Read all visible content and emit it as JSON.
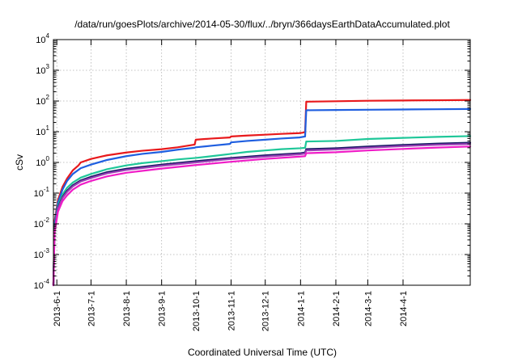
{
  "chart_data": {
    "type": "line",
    "title": "/data/run/goesPlots/archive/2014-05-30/flux/../bryn/366daysEarthDataAccumulated.plot",
    "xlabel": "Coordinated Universal Time (UTC)",
    "ylabel": "cSv",
    "yscale": "log",
    "ylim": [
      0.0001,
      10000
    ],
    "xlim": [
      "2013-05-29",
      "2014-05-30"
    ],
    "grid": true,
    "x_ticks": [
      "2013-6-1",
      "2013-7-1",
      "2013-8-1",
      "2013-9-1",
      "2013-10-1",
      "2013-11-1",
      "2013-12-1",
      "2014-1-1",
      "2014-2-1",
      "2014-3-1",
      "2014-4-1"
    ],
    "y_ticks": [
      {
        "value": 0.0001,
        "base": "10",
        "exp": "-4"
      },
      {
        "value": 0.001,
        "base": "10",
        "exp": "-3"
      },
      {
        "value": 0.01,
        "base": "10",
        "exp": "-2"
      },
      {
        "value": 0.1,
        "base": "10",
        "exp": "-1"
      },
      {
        "value": 1,
        "base": "10",
        "exp": "0"
      },
      {
        "value": 10,
        "base": "10",
        "exp": "1"
      },
      {
        "value": 100,
        "base": "10",
        "exp": "2"
      },
      {
        "value": 1000,
        "base": "10",
        "exp": "3"
      },
      {
        "value": 10000,
        "base": "10",
        "exp": "4"
      }
    ],
    "series": [
      {
        "color": "#e8191c",
        "points": [
          [
            "2013-05-29",
            0.0001
          ],
          [
            "2013-05-30",
            0.012
          ],
          [
            "2013-06-02",
            0.06
          ],
          [
            "2013-06-06",
            0.16
          ],
          [
            "2013-06-10",
            0.3
          ],
          [
            "2013-06-15",
            0.55
          ],
          [
            "2013-06-20",
            0.8
          ],
          [
            "2013-06-22",
            1.0
          ],
          [
            "2013-07-01",
            1.3
          ],
          [
            "2013-07-15",
            1.7
          ],
          [
            "2013-08-01",
            2.1
          ],
          [
            "2013-08-15",
            2.4
          ],
          [
            "2013-09-01",
            2.7
          ],
          [
            "2013-09-15",
            3.1
          ],
          [
            "2013-09-30",
            3.8
          ],
          [
            "2013-10-01",
            5.5
          ],
          [
            "2013-10-15",
            6.0
          ],
          [
            "2013-10-31",
            6.5
          ],
          [
            "2013-11-01",
            7.0
          ],
          [
            "2013-11-15",
            7.5
          ],
          [
            "2013-12-01",
            8.0
          ],
          [
            "2013-12-15",
            8.5
          ],
          [
            "2013-12-31",
            9.0
          ],
          [
            "2014-01-03",
            9.3
          ],
          [
            "2014-01-05",
            9.8
          ],
          [
            "2014-01-06",
            95
          ],
          [
            "2014-02-01",
            98
          ],
          [
            "2014-03-01",
            102
          ],
          [
            "2014-04-01",
            104
          ],
          [
            "2014-05-01",
            106
          ],
          [
            "2014-05-30",
            108
          ]
        ]
      },
      {
        "color": "#1f5fe0",
        "points": [
          [
            "2013-05-29",
            0.0001
          ],
          [
            "2013-05-30",
            0.01
          ],
          [
            "2013-06-02",
            0.05
          ],
          [
            "2013-06-06",
            0.13
          ],
          [
            "2013-06-10",
            0.25
          ],
          [
            "2013-06-15",
            0.42
          ],
          [
            "2013-06-22",
            0.65
          ],
          [
            "2013-07-01",
            0.85
          ],
          [
            "2013-07-15",
            1.2
          ],
          [
            "2013-08-01",
            1.6
          ],
          [
            "2013-08-15",
            1.9
          ],
          [
            "2013-09-01",
            2.2
          ],
          [
            "2013-09-15",
            2.6
          ],
          [
            "2013-09-30",
            3.0
          ],
          [
            "2013-10-01",
            3.1
          ],
          [
            "2013-10-15",
            3.5
          ],
          [
            "2013-10-31",
            4.0
          ],
          [
            "2013-11-01",
            4.5
          ],
          [
            "2013-11-15",
            5.0
          ],
          [
            "2013-12-01",
            5.5
          ],
          [
            "2013-12-15",
            6.0
          ],
          [
            "2013-12-31",
            6.5
          ],
          [
            "2014-01-05",
            7.0
          ],
          [
            "2014-01-06",
            50
          ],
          [
            "2014-02-01",
            51
          ],
          [
            "2014-03-01",
            52
          ],
          [
            "2014-04-01",
            53
          ],
          [
            "2014-05-01",
            54
          ],
          [
            "2014-05-30",
            55
          ]
        ]
      },
      {
        "color": "#1fc799",
        "points": [
          [
            "2013-05-29",
            0.0001
          ],
          [
            "2013-05-30",
            0.008
          ],
          [
            "2013-06-02",
            0.04
          ],
          [
            "2013-06-06",
            0.09
          ],
          [
            "2013-06-10",
            0.15
          ],
          [
            "2013-06-15",
            0.22
          ],
          [
            "2013-06-22",
            0.32
          ],
          [
            "2013-07-01",
            0.42
          ],
          [
            "2013-07-15",
            0.6
          ],
          [
            "2013-08-01",
            0.8
          ],
          [
            "2013-08-15",
            0.95
          ],
          [
            "2013-09-01",
            1.1
          ],
          [
            "2013-09-15",
            1.25
          ],
          [
            "2013-10-01",
            1.4
          ],
          [
            "2013-10-15",
            1.6
          ],
          [
            "2013-11-01",
            1.9
          ],
          [
            "2013-11-15",
            2.2
          ],
          [
            "2013-12-01",
            2.45
          ],
          [
            "2013-12-15",
            2.7
          ],
          [
            "2014-01-01",
            2.9
          ],
          [
            "2014-01-05",
            3.0
          ],
          [
            "2014-01-06",
            4.8
          ],
          [
            "2014-02-01",
            5.0
          ],
          [
            "2014-03-01",
            5.8
          ],
          [
            "2014-04-01",
            6.3
          ],
          [
            "2014-05-01",
            6.8
          ],
          [
            "2014-05-30",
            7.2
          ]
        ]
      },
      {
        "color": "#1a1a66",
        "points": [
          [
            "2013-05-29",
            0.0001
          ],
          [
            "2013-05-30",
            0.007
          ],
          [
            "2013-06-02",
            0.035
          ],
          [
            "2013-06-06",
            0.075
          ],
          [
            "2013-06-10",
            0.12
          ],
          [
            "2013-06-15",
            0.18
          ],
          [
            "2013-06-22",
            0.26
          ],
          [
            "2013-07-01",
            0.34
          ],
          [
            "2013-07-15",
            0.48
          ],
          [
            "2013-08-01",
            0.62
          ],
          [
            "2013-09-01",
            0.85
          ],
          [
            "2013-10-01",
            1.1
          ],
          [
            "2013-11-01",
            1.4
          ],
          [
            "2013-12-01",
            1.7
          ],
          [
            "2014-01-01",
            2.0
          ],
          [
            "2014-01-05",
            2.1
          ],
          [
            "2014-01-06",
            2.7
          ],
          [
            "2014-02-01",
            2.9
          ],
          [
            "2014-03-01",
            3.3
          ],
          [
            "2014-04-01",
            3.7
          ],
          [
            "2014-05-01",
            4.1
          ],
          [
            "2014-05-30",
            4.4
          ]
        ]
      },
      {
        "color": "#9a3fb5",
        "points": [
          [
            "2013-05-29",
            0.0001
          ],
          [
            "2013-05-30",
            0.0065
          ],
          [
            "2013-06-02",
            0.032
          ],
          [
            "2013-06-06",
            0.07
          ],
          [
            "2013-06-10",
            0.11
          ],
          [
            "2013-06-15",
            0.165
          ],
          [
            "2013-06-22",
            0.24
          ],
          [
            "2013-07-01",
            0.31
          ],
          [
            "2013-07-15",
            0.44
          ],
          [
            "2013-08-01",
            0.57
          ],
          [
            "2013-09-01",
            0.78
          ],
          [
            "2013-10-01",
            1.0
          ],
          [
            "2013-11-01",
            1.3
          ],
          [
            "2013-12-01",
            1.55
          ],
          [
            "2014-01-01",
            1.85
          ],
          [
            "2014-01-05",
            1.95
          ],
          [
            "2014-01-06",
            2.45
          ],
          [
            "2014-02-01",
            2.65
          ],
          [
            "2014-03-01",
            3.0
          ],
          [
            "2014-04-01",
            3.4
          ],
          [
            "2014-05-01",
            3.75
          ],
          [
            "2014-05-30",
            4.0
          ]
        ]
      },
      {
        "color": "#f01cc7",
        "points": [
          [
            "2013-05-29",
            0.0001
          ],
          [
            "2013-05-30",
            0.005
          ],
          [
            "2013-06-02",
            0.025
          ],
          [
            "2013-06-06",
            0.055
          ],
          [
            "2013-06-10",
            0.085
          ],
          [
            "2013-06-15",
            0.13
          ],
          [
            "2013-06-22",
            0.19
          ],
          [
            "2013-07-01",
            0.25
          ],
          [
            "2013-07-15",
            0.35
          ],
          [
            "2013-08-01",
            0.46
          ],
          [
            "2013-09-01",
            0.63
          ],
          [
            "2013-10-01",
            0.82
          ],
          [
            "2013-11-01",
            1.05
          ],
          [
            "2013-12-01",
            1.3
          ],
          [
            "2014-01-01",
            1.55
          ],
          [
            "2014-01-05",
            1.6
          ],
          [
            "2014-01-06",
            2.0
          ],
          [
            "2014-02-01",
            2.15
          ],
          [
            "2014-03-01",
            2.45
          ],
          [
            "2014-04-01",
            2.75
          ],
          [
            "2014-05-01",
            3.05
          ],
          [
            "2014-05-30",
            3.3
          ]
        ]
      }
    ]
  }
}
